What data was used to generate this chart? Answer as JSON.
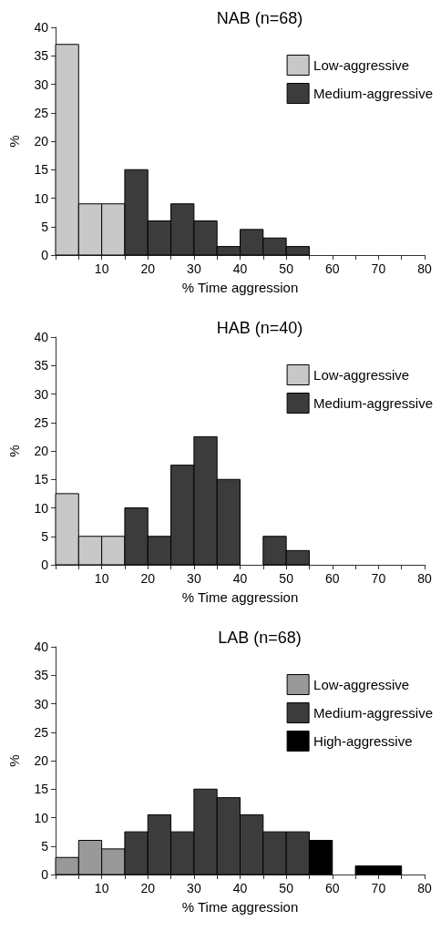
{
  "chart_data": [
    {
      "type": "histogram",
      "title": "NAB (n=68)",
      "xlabel": "% Time aggression",
      "ylabel": "%",
      "bins": [
        0,
        5,
        10,
        15,
        20,
        25,
        30,
        35,
        40,
        45,
        50,
        55,
        60,
        65,
        70,
        75,
        80
      ],
      "series": [
        {
          "name": "Low-aggressive",
          "color": "#c8c8c8",
          "values": [
            37,
            9,
            9,
            null,
            null,
            null,
            null,
            null,
            null,
            null,
            null,
            null,
            null,
            null,
            null,
            null
          ]
        },
        {
          "name": "Medium-aggressive",
          "color": "#3c3c3c",
          "values": [
            null,
            null,
            null,
            15,
            6,
            9,
            6,
            1.5,
            4.5,
            3,
            1.5,
            null,
            null,
            null,
            null,
            null
          ]
        }
      ],
      "xlim": [
        0,
        80
      ],
      "xticks": [
        10,
        20,
        30,
        40,
        50,
        60,
        70,
        80
      ],
      "ylim": [
        0,
        40
      ],
      "yticks": [
        0,
        5,
        10,
        15,
        20,
        25,
        30,
        35,
        40
      ],
      "grid": false,
      "legend": "top right"
    },
    {
      "type": "histogram",
      "title": "HAB (n=40)",
      "xlabel": "% Time aggression",
      "ylabel": "%",
      "bins": [
        0,
        5,
        10,
        15,
        20,
        25,
        30,
        35,
        40,
        45,
        50,
        55,
        60,
        65,
        70,
        75,
        80
      ],
      "series": [
        {
          "name": "Low-aggressive",
          "color": "#c8c8c8",
          "values": [
            12.5,
            5,
            5,
            null,
            null,
            null,
            null,
            null,
            null,
            null,
            null,
            null,
            null,
            null,
            null,
            null
          ]
        },
        {
          "name": "Medium-aggressive",
          "color": "#3c3c3c",
          "values": [
            null,
            null,
            null,
            10,
            5,
            17.5,
            22.5,
            15,
            null,
            5,
            2.5,
            null,
            null,
            null,
            null,
            null
          ]
        }
      ],
      "xlim": [
        0,
        80
      ],
      "xticks": [
        10,
        20,
        30,
        40,
        50,
        60,
        70,
        80
      ],
      "ylim": [
        0,
        40
      ],
      "yticks": [
        0,
        5,
        10,
        15,
        20,
        25,
        30,
        35,
        40
      ],
      "grid": false,
      "legend": "top right"
    },
    {
      "type": "histogram",
      "title": "LAB (n=68)",
      "xlabel": "% Time aggression",
      "ylabel": "%",
      "bins": [
        0,
        5,
        10,
        15,
        20,
        25,
        30,
        35,
        40,
        45,
        50,
        55,
        60,
        65,
        70,
        75,
        80
      ],
      "series": [
        {
          "name": "Low-aggressive",
          "color": "#999999",
          "values": [
            3,
            6,
            4.5,
            null,
            null,
            null,
            null,
            null,
            null,
            null,
            null,
            null,
            null,
            null,
            null,
            null
          ]
        },
        {
          "name": "Medium-aggressive",
          "color": "#3c3c3c",
          "values": [
            null,
            null,
            null,
            7.5,
            10.5,
            7.5,
            15,
            13.5,
            10.5,
            7.5,
            7.5,
            null,
            null,
            null,
            null,
            null
          ]
        },
        {
          "name": "High-aggressive",
          "color": "#000000",
          "values": [
            null,
            null,
            null,
            null,
            null,
            null,
            null,
            null,
            null,
            null,
            null,
            6,
            null,
            1.5,
            1.5,
            null
          ]
        }
      ],
      "xlim": [
        0,
        80
      ],
      "xticks": [
        10,
        20,
        30,
        40,
        50,
        60,
        70,
        80
      ],
      "ylim": [
        0,
        40
      ],
      "yticks": [
        0,
        5,
        10,
        15,
        20,
        25,
        30,
        35,
        40
      ],
      "grid": false,
      "legend": "top right"
    }
  ]
}
